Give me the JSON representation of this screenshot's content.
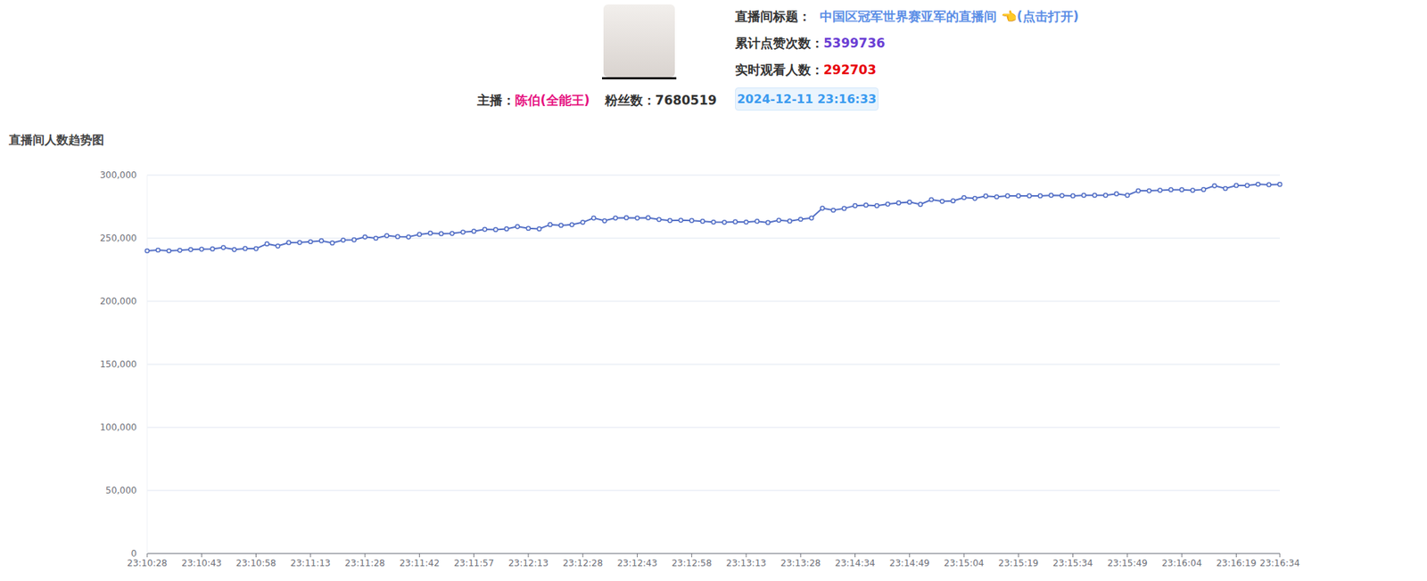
{
  "header": {
    "title_label": "直播间标题：",
    "room_title": "中国区冠军世界赛亚军的直播间 👈(点击打开)",
    "likes_label": "累计点赞次数：",
    "likes": 5399736,
    "viewers_label": "实时观看人数：",
    "viewers": 292703,
    "host_label": "主播：",
    "host_name": "陈伯(全能王)",
    "fans_label": "粉丝数：",
    "fans": 7680519,
    "timestamp": "2024-12-11 23:16:33"
  },
  "chart_data": {
    "type": "line",
    "title": "直播间人数趋势图",
    "categories": [
      "23:10:28",
      null,
      null,
      null,
      null,
      "23:10:43",
      null,
      null,
      null,
      null,
      "23:10:58",
      null,
      null,
      null,
      null,
      "23:11:13",
      null,
      null,
      null,
      null,
      "23:11:28",
      null,
      null,
      null,
      null,
      "23:11:42",
      null,
      null,
      null,
      null,
      "23:11:57",
      null,
      null,
      null,
      null,
      "23:12:13",
      null,
      null,
      null,
      null,
      "23:12:28",
      null,
      null,
      null,
      null,
      "23:12:43",
      null,
      null,
      null,
      null,
      "23:12:58",
      null,
      null,
      null,
      null,
      "23:13:13",
      null,
      null,
      null,
      null,
      "23:13:28",
      null,
      null,
      null,
      null,
      "23:14:34",
      null,
      null,
      null,
      null,
      "23:14:49",
      null,
      null,
      null,
      null,
      "23:15:04",
      null,
      null,
      null,
      null,
      "23:15:19",
      null,
      null,
      null,
      null,
      "23:15:34",
      null,
      null,
      null,
      null,
      "23:15:49",
      null,
      null,
      null,
      null,
      "23:16:04",
      null,
      null,
      null,
      null,
      "23:16:19",
      null,
      null,
      null,
      "23:16:34"
    ],
    "values": [
      240000,
      240600,
      240000,
      240400,
      241000,
      241300,
      241500,
      242600,
      241000,
      241800,
      241700,
      245500,
      243800,
      246500,
      246600,
      247200,
      248000,
      246200,
      248500,
      248700,
      251000,
      250000,
      252000,
      251200,
      251000,
      253000,
      254000,
      253600,
      253800,
      254800,
      255500,
      257000,
      256800,
      257400,
      259200,
      257800,
      257400,
      260800,
      260200,
      260700,
      262600,
      266000,
      263800,
      266000,
      266200,
      266000,
      266200,
      264800,
      264000,
      264200,
      264000,
      263400,
      262800,
      262600,
      263000,
      262800,
      263400,
      262400,
      264200,
      263600,
      265000,
      266000,
      273800,
      272200,
      273600,
      275800,
      276200,
      275800,
      277000,
      278000,
      278600,
      276800,
      280600,
      279200,
      279600,
      282200,
      281600,
      283400,
      282800,
      283600,
      283600,
      283600,
      283600,
      284000,
      283800,
      283600,
      284000,
      284000,
      284000,
      285200,
      284000,
      287600,
      287600,
      288000,
      288400,
      288400,
      288000,
      288600,
      291600,
      289400,
      291800,
      291800,
      292800,
      292400,
      292703
    ],
    "color": "#5470c6",
    "ylim": [
      0,
      300000
    ],
    "yticks": [
      {
        "value": 0,
        "label": "0"
      },
      {
        "value": 50000,
        "label": "50,000"
      },
      {
        "value": 100000,
        "label": "100,000"
      },
      {
        "value": 150000,
        "label": "150,000"
      },
      {
        "value": 200000,
        "label": "200,000"
      },
      {
        "value": 250000,
        "label": "250,000"
      },
      {
        "value": 300000,
        "label": "300,000"
      }
    ],
    "grid": true,
    "marker": "circle"
  }
}
